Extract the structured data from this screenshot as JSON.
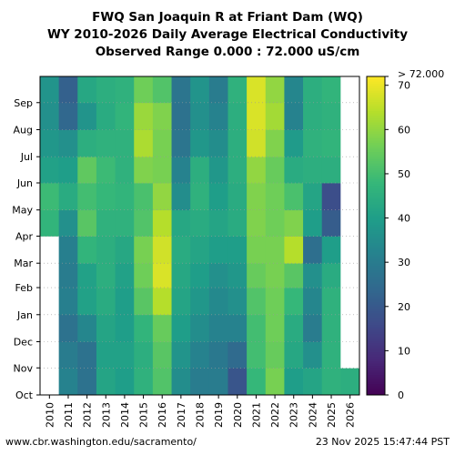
{
  "title_lines": [
    "FWQ San Joaquin R at Friant Dam (WQ)",
    "WY 2010-2026 Daily Average Electrical Conductivity",
    "Observed Range 0.000 : 72.000 uS/cm"
  ],
  "footer": {
    "left": "www.cbr.washington.edu/sacramento/",
    "right": "23 Nov 2025 15:47:44 PST"
  },
  "chart_data": {
    "type": "heatmap",
    "x_label": "",
    "y_label": "",
    "years": [
      "2010",
      "2011",
      "2012",
      "2013",
      "2014",
      "2015",
      "2016",
      "2017",
      "2018",
      "2019",
      "2020",
      "2021",
      "2022",
      "2023",
      "2024",
      "2025",
      "2026"
    ],
    "months": [
      "Oct",
      "Nov",
      "Dec",
      "Jan",
      "Feb",
      "Mar",
      "Apr",
      "May",
      "Jun",
      "Jul",
      "Aug",
      "Sep"
    ],
    "colorbar": {
      "min": 0,
      "max": 72,
      "ticks": [
        0,
        10,
        20,
        30,
        40,
        50,
        60,
        70
      ],
      "top_label": "> 72.000",
      "colors": [
        "#440154",
        "#482878",
        "#3e4a89",
        "#31688e",
        "#26828e",
        "#1f9e89",
        "#35b779",
        "#6ece58",
        "#b5de2b",
        "#fde725"
      ]
    },
    "water_year_start": "Oct",
    "ec_monthly": [
      [
        null,
        null,
        null,
        null,
        null,
        null,
        null,
        null,
        null,
        null,
        null,
        null
      ],
      [
        null,
        null,
        null,
        null,
        null,
        null,
        null,
        null,
        null,
        null,
        null,
        null
      ],
      [
        null,
        null,
        null,
        null,
        null,
        null,
        null,
        null,
        null,
        null,
        null,
        null
      ],
      [
        null,
        null,
        null,
        null,
        null,
        null,
        null,
        null,
        null,
        null,
        null,
        null
      ],
      [
        null,
        null,
        null,
        null,
        null,
        null,
        null,
        null,
        null,
        null,
        null,
        null
      ],
      [
        null,
        null,
        null,
        null,
        null,
        null,
        null,
        null,
        null,
        null,
        null,
        null
      ],
      [
        null,
        null,
        null,
        null,
        null,
        null,
        null,
        null,
        null,
        null,
        null,
        null
      ],
      [
        null,
        null,
        null,
        null,
        null,
        null,
        null,
        null,
        null,
        null,
        null,
        null
      ],
      [
        null,
        null,
        null,
        null,
        null,
        null,
        null,
        null,
        null,
        null,
        null,
        null
      ],
      [
        null,
        null,
        null,
        null,
        null,
        null,
        null,
        null,
        null,
        null,
        null,
        null
      ],
      [
        null,
        null,
        null,
        null,
        null,
        null,
        null,
        null,
        null,
        null,
        null,
        null
      ],
      [
        null,
        null,
        null,
        null,
        null,
        null,
        null,
        null,
        null,
        null,
        null,
        null
      ],
      [
        null,
        null,
        null,
        null,
        null,
        null,
        null,
        null,
        null,
        null,
        null,
        null
      ],
      [
        null,
        null,
        null,
        null,
        null,
        null,
        null,
        null,
        null,
        null,
        null,
        null
      ],
      [
        null,
        null,
        null,
        null,
        null,
        null,
        null,
        null,
        null,
        null,
        null,
        null
      ],
      [
        null,
        null,
        null,
        null,
        null,
        null,
        null,
        null,
        null,
        null,
        null,
        null
      ],
      [
        null,
        null,
        null,
        null,
        null,
        null,
        null,
        null,
        null,
        null,
        null,
        null
      ]
    ],
    "values": [
      [
        null,
        null,
        null,
        null,
        null,
        null,
        47,
        49,
        41,
        38,
        36,
        37
      ],
      [
        32,
        30,
        27,
        31,
        30,
        31,
        36,
        44,
        40,
        36,
        24,
        22
      ],
      [
        27,
        27,
        33,
        41,
        41,
        47,
        53,
        50,
        54,
        45,
        37,
        43
      ],
      [
        42,
        41,
        42,
        44,
        45,
        45,
        46,
        48,
        49,
        46,
        44,
        45
      ],
      [
        40,
        41,
        40,
        40,
        41,
        43,
        46,
        47,
        46,
        46,
        47,
        46
      ],
      [
        46,
        45,
        47,
        53,
        56,
        57,
        52,
        51,
        58,
        63,
        61,
        56
      ],
      [
        52,
        53,
        55,
        64,
        68,
        67,
        64,
        60,
        57,
        57,
        58,
        52
      ],
      [
        35,
        37,
        40,
        42,
        43,
        44,
        43,
        35,
        32,
        28,
        27,
        28
      ],
      [
        30,
        32,
        35,
        38,
        40,
        42,
        44,
        46,
        45,
        38,
        36,
        37
      ],
      [
        30,
        29,
        32,
        34,
        36,
        40,
        42,
        40,
        38,
        35,
        32,
        30
      ],
      [
        19,
        25,
        32,
        36,
        38,
        40,
        44,
        44,
        45,
        45,
        45,
        46
      ],
      [
        48,
        50,
        50,
        52,
        55,
        57,
        58,
        58,
        60,
        67,
        68,
        68
      ],
      [
        57,
        55,
        56,
        56,
        57,
        57,
        56,
        56,
        55,
        58,
        62,
        60
      ],
      [
        40,
        43,
        44,
        48,
        53,
        64,
        58,
        51,
        44,
        39,
        32,
        33
      ],
      [
        42,
        36,
        30,
        33,
        36,
        26,
        40,
        42,
        45,
        46,
        45,
        45
      ],
      [
        46,
        46,
        46,
        46,
        44,
        40,
        21,
        17,
        45,
        47,
        46,
        47
      ],
      [
        45,
        null,
        null,
        null,
        null,
        null,
        null,
        null,
        null,
        null,
        null,
        null
      ]
    ],
    "ylim": [
      0,
      365
    ],
    "grid": true
  }
}
